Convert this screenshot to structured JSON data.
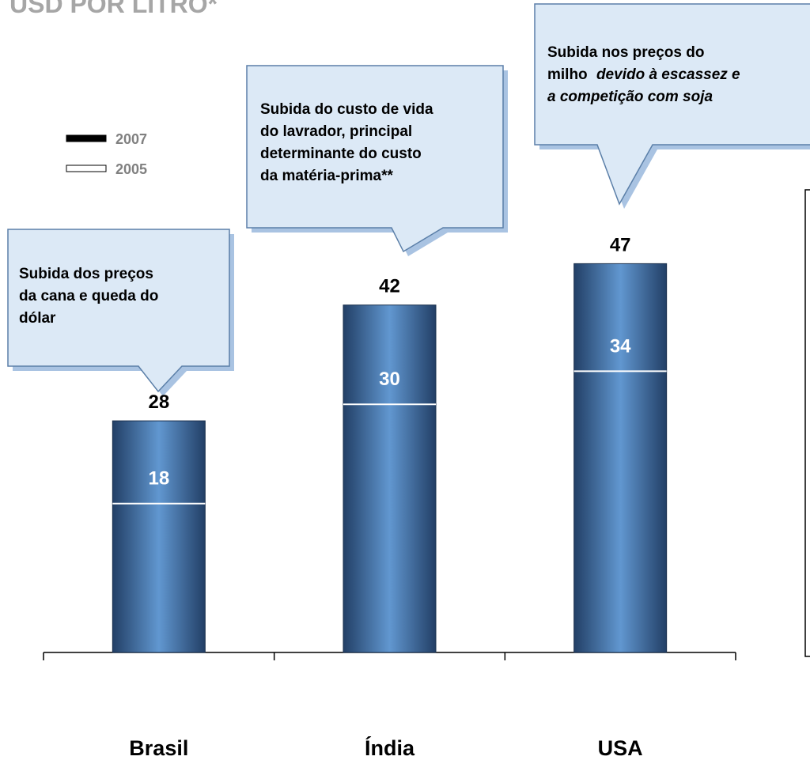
{
  "chart_data": {
    "type": "bar",
    "title": "USD POR LITRO*",
    "categories": [
      "Brasil",
      "Índia",
      "USA"
    ],
    "series": [
      {
        "name": "2007",
        "color": "#000000",
        "values": [
          28,
          42,
          47
        ]
      },
      {
        "name": "2005",
        "color": "#ffffff",
        "values": [
          18,
          30,
          34
        ]
      }
    ],
    "bar_color": "#4a7ab4",
    "ylim": [
      0,
      50
    ],
    "annotations": [
      {
        "lines": [
          "Subida dos preços",
          "da cana e queda do",
          "dólar"
        ]
      },
      {
        "lines": [
          "Subida do custo de vida",
          "do lavrador, principal",
          "determinante do custo",
          "da matéria-prima**"
        ]
      },
      {
        "lines": [
          "Subida nos preços do",
          "milho",
          "devido à escassez e",
          "a competição com soja"
        ]
      }
    ]
  }
}
